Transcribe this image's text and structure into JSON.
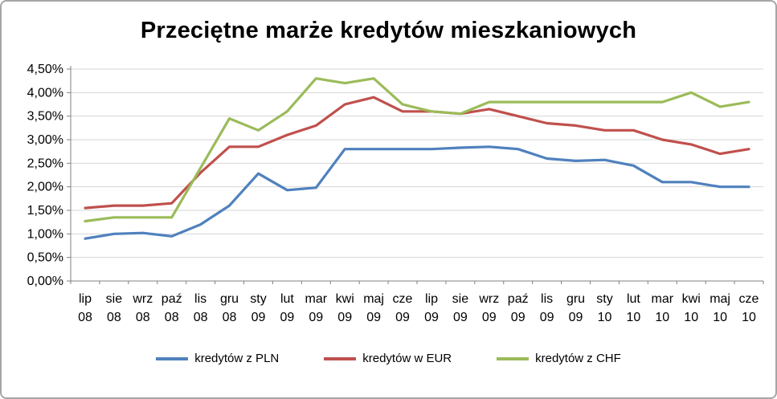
{
  "chart_data": {
    "type": "line",
    "title": "Przeciętne marże kredytów mieszkaniowych",
    "categories": [
      "lip 08",
      "sie 08",
      "wrz 08",
      "paź 08",
      "lis 08",
      "gru 08",
      "sty 09",
      "lut 09",
      "mar 09",
      "kwi 09",
      "maj 09",
      "cze 09",
      "lip 09",
      "sie 09",
      "wrz 09",
      "paź 09",
      "lis 09",
      "gru 09",
      "sty 10",
      "lut 10",
      "mar 10",
      "kwi 10",
      "maj 10",
      "cze 10"
    ],
    "series": [
      {
        "name": "kredytów z PLN",
        "color": "#4F81BD",
        "values": [
          0.9,
          1.0,
          1.02,
          0.95,
          1.2,
          1.6,
          2.28,
          1.93,
          1.98,
          2.8,
          2.8,
          2.8,
          2.8,
          2.83,
          2.85,
          2.8,
          2.6,
          2.55,
          2.57,
          2.45,
          2.1,
          2.1,
          2.0,
          2.0
        ]
      },
      {
        "name": "kredytów w EUR",
        "color": "#C0504D",
        "values": [
          1.55,
          1.6,
          1.6,
          1.65,
          2.3,
          2.85,
          2.85,
          3.1,
          3.3,
          3.75,
          3.9,
          3.6,
          3.6,
          3.55,
          3.65,
          3.5,
          3.35,
          3.3,
          3.2,
          3.2,
          3.0,
          2.9,
          2.7,
          2.8
        ]
      },
      {
        "name": "kredytów z CHF",
        "color": "#9BBB59",
        "values": [
          1.27,
          1.35,
          1.35,
          1.35,
          2.4,
          3.45,
          3.2,
          3.6,
          4.3,
          4.2,
          4.3,
          3.75,
          3.6,
          3.55,
          3.8,
          3.8,
          3.8,
          3.8,
          3.8,
          3.8,
          3.8,
          4.0,
          3.7,
          3.8
        ]
      }
    ],
    "ylim": [
      0,
      4.5
    ],
    "ystep": 0.5,
    "y_tick_labels": [
      "0,00%",
      "0,50%",
      "1,00%",
      "1,50%",
      "2,00%",
      "2,50%",
      "3,00%",
      "3,50%",
      "4,00%",
      "4,50%"
    ],
    "grid": true,
    "grid_color": "#d6d6d6",
    "axis_color": "#808080",
    "legend_position": "bottom"
  }
}
